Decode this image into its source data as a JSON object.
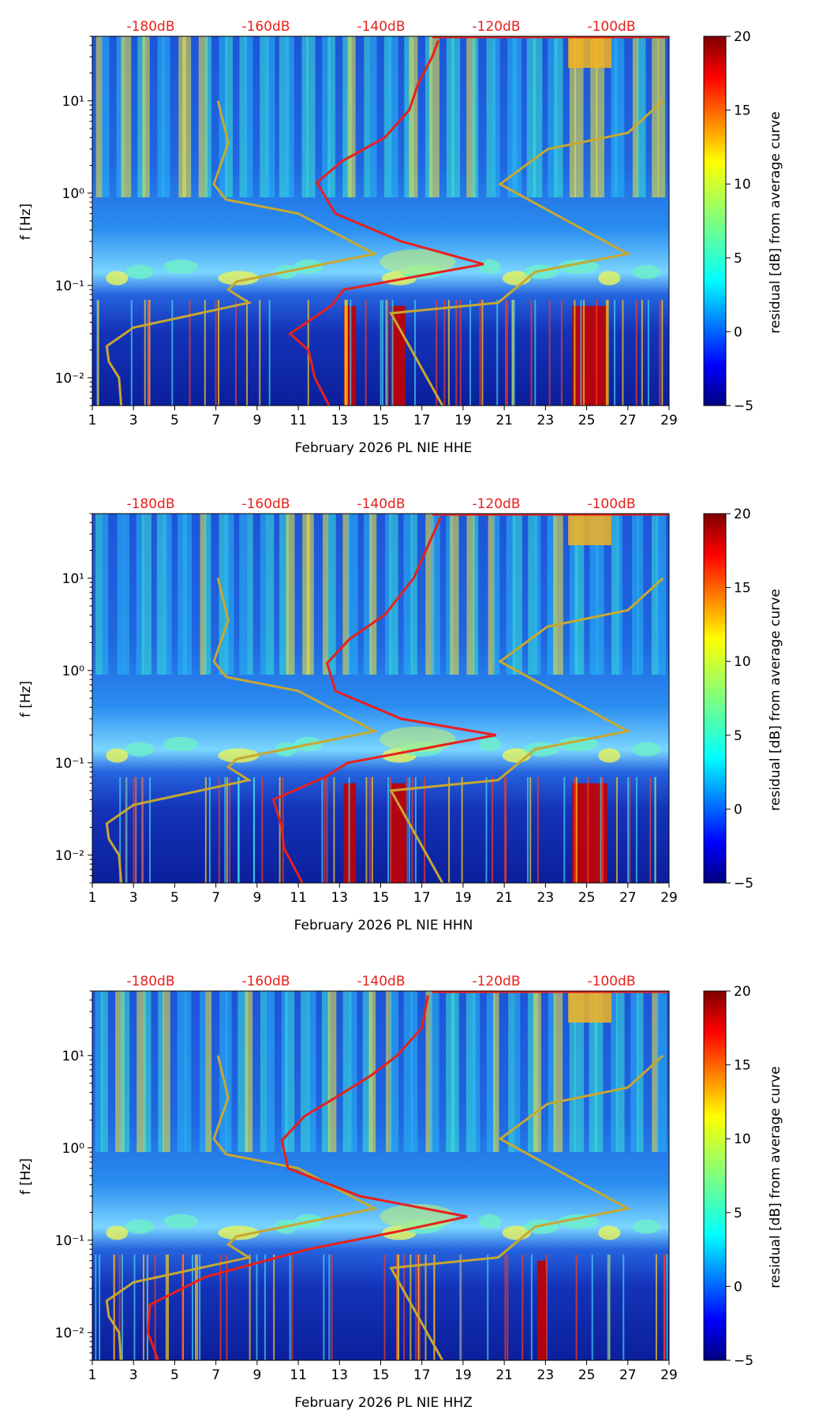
{
  "figure": {
    "type": "spectrogram-residual-panels"
  },
  "chart_data": [
    {
      "type": "heatmap",
      "channel": "HHE",
      "title": "",
      "xlabel": "February 2026 PL NIE  HHE",
      "ylabel": "f [Hz]",
      "x_ticks": [
        "1",
        "3",
        "5",
        "7",
        "9",
        "11",
        "13",
        "15",
        "17",
        "19",
        "21",
        "23",
        "25",
        "27",
        "29"
      ],
      "xlim": [
        1,
        29
      ],
      "y_ticks": [
        {
          "value": 0.01,
          "label": "10⁻²"
        },
        {
          "value": 0.1,
          "label": "10⁻¹"
        },
        {
          "value": 1,
          "label": "10⁰"
        },
        {
          "value": 10,
          "label": "10¹"
        }
      ],
      "ylim": [
        0.005,
        50
      ],
      "yscale": "log",
      "top_axis_labels": [
        "-180dB",
        "-160dB",
        "-140dB",
        "-120dB",
        "-100dB"
      ],
      "colorbar": {
        "label": "residual [dB] from average curve",
        "ticks": [
          "20",
          "15",
          "10",
          "5",
          "0",
          "−5"
        ],
        "range": [
          -5,
          20
        ],
        "colormap": "jet"
      },
      "curve_colors": {
        "median_psd": "#e8201c",
        "reference_model": "#c7a830"
      }
    },
    {
      "type": "heatmap",
      "channel": "HHN",
      "title": "",
      "xlabel": "February 2026 PL NIE  HHN",
      "ylabel": "f [Hz]",
      "x_ticks": [
        "1",
        "3",
        "5",
        "7",
        "9",
        "11",
        "13",
        "15",
        "17",
        "19",
        "21",
        "23",
        "25",
        "27",
        "29"
      ],
      "xlim": [
        1,
        29
      ],
      "y_ticks": [
        {
          "value": 0.01,
          "label": "10⁻²"
        },
        {
          "value": 0.1,
          "label": "10⁻¹"
        },
        {
          "value": 1,
          "label": "10⁰"
        },
        {
          "value": 10,
          "label": "10¹"
        }
      ],
      "ylim": [
        0.005,
        50
      ],
      "yscale": "log",
      "top_axis_labels": [
        "-180dB",
        "-160dB",
        "-140dB",
        "-120dB",
        "-100dB"
      ],
      "colorbar": {
        "label": "residual [dB] from average curve",
        "ticks": [
          "20",
          "15",
          "10",
          "5",
          "0",
          "−5"
        ],
        "range": [
          -5,
          20
        ],
        "colormap": "jet"
      },
      "curve_colors": {
        "median_psd": "#e8201c",
        "reference_model": "#c7a830"
      }
    },
    {
      "type": "heatmap",
      "channel": "HHZ",
      "title": "",
      "xlabel": "February 2026 PL NIE  HHZ",
      "ylabel": "f [Hz]",
      "x_ticks": [
        "1",
        "3",
        "5",
        "7",
        "9",
        "11",
        "13",
        "15",
        "17",
        "19",
        "21",
        "23",
        "25",
        "27",
        "29"
      ],
      "xlim": [
        1,
        29
      ],
      "y_ticks": [
        {
          "value": 0.01,
          "label": "10⁻²"
        },
        {
          "value": 0.1,
          "label": "10⁻¹"
        },
        {
          "value": 1,
          "label": "10⁰"
        },
        {
          "value": 10,
          "label": "10¹"
        }
      ],
      "ylim": [
        0.005,
        50
      ],
      "yscale": "log",
      "top_axis_labels": [
        "-180dB",
        "-160dB",
        "-140dB",
        "-120dB",
        "-100dB"
      ],
      "colorbar": {
        "label": "residual [dB] from average curve",
        "ticks": [
          "20",
          "15",
          "10",
          "5",
          "0",
          "−5"
        ],
        "range": [
          -5,
          20
        ],
        "colormap": "jet"
      },
      "curve_colors": {
        "median_psd": "#e8201c",
        "reference_model": "#c7a830"
      }
    }
  ]
}
